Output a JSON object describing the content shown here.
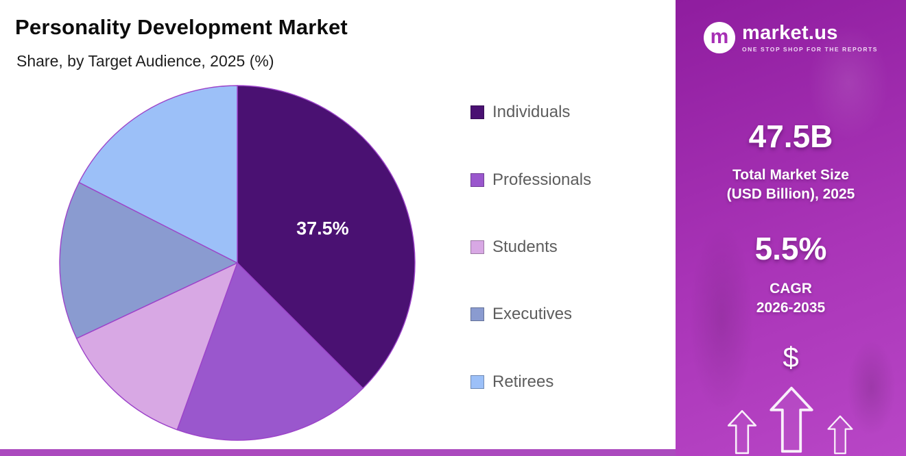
{
  "header": {
    "title": "Personality Development Market",
    "subtitle": "Share, by Target Audience, 2025 (%)"
  },
  "chart_data": {
    "type": "pie",
    "title": "Personality Development Market Share, by Target Audience, 2025 (%)",
    "categories": [
      "Individuals",
      "Professionals",
      "Students",
      "Executives",
      "Retirees"
    ],
    "values": [
      37.5,
      18.0,
      12.5,
      14.5,
      17.5
    ],
    "unit": "%",
    "colors": [
      "#4A1172",
      "#9A57CD",
      "#D8A8E4",
      "#8A9BD0",
      "#9CC0F8"
    ],
    "data_label": {
      "slice": "Individuals",
      "text": "37.5%"
    },
    "start_angle_deg": -90,
    "direction": "clockwise",
    "legend_position": "right",
    "outline_color": "#9C43C9"
  },
  "sidebar": {
    "logo": {
      "brand": "market.us",
      "monogram": "m",
      "tagline": "ONE STOP SHOP FOR THE REPORTS"
    },
    "stats": [
      {
        "value": "47.5B",
        "label_line1": "Total Market Size",
        "label_line2": "(USD Billion), 2025"
      },
      {
        "value": "5.5%",
        "label_line1": "CAGR",
        "label_line2": "2026-2035"
      }
    ],
    "dollar_symbol": "$",
    "panel_gradient": [
      "#8F1D9F",
      "#A934B7",
      "#B846C6"
    ],
    "bottom_bar_color": "#AB4ABE"
  }
}
